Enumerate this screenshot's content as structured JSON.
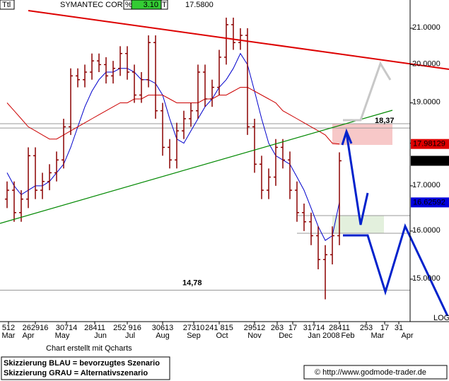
{
  "chart_data": {
    "type": "ohlc",
    "header": {
      "symbol": "Ttl",
      "name": "SYMANTEC CORP",
      "pct_label": "%",
      "pct": "3.10",
      "t_label": "T",
      "last": "17.5800"
    },
    "log_scale": true,
    "xlim": [
      0,
      290
    ],
    "ylim": [
      14.17,
      21.81
    ],
    "yticks": [
      {
        "value": 15,
        "label": "15.0000"
      },
      {
        "value": 16,
        "label": "16.0000"
      },
      {
        "value": 17,
        "label": "17.0000"
      },
      {
        "value": 18,
        "label": "18.0000"
      },
      {
        "value": 19,
        "label": "19.0000"
      },
      {
        "value": 20,
        "label": "20.0000"
      },
      {
        "value": 21,
        "label": "21.0000"
      }
    ],
    "xticks": [
      {
        "value": 6,
        "label": "512"
      },
      {
        "value": 25,
        "label": "262916"
      },
      {
        "value": 47,
        "label": "30714"
      },
      {
        "value": 67,
        "label": "28411"
      },
      {
        "value": 90,
        "label": "252 916"
      },
      {
        "value": 115,
        "label": "30613"
      },
      {
        "value": 137,
        "label": "27310"
      },
      {
        "value": 155,
        "label": "241 815"
      },
      {
        "value": 180,
        "label": "29512"
      },
      {
        "value": 196,
        "label": "263"
      },
      {
        "value": 207,
        "label": "17"
      },
      {
        "value": 222,
        "label": "31714"
      },
      {
        "value": 240,
        "label": "28411"
      },
      {
        "value": 259,
        "label": "253"
      },
      {
        "value": 272,
        "label": "17"
      },
      {
        "value": 282,
        "label": "31"
      }
    ],
    "xticks_months": [
      {
        "value": 6,
        "label": "Mar"
      },
      {
        "value": 20,
        "label": "Apr"
      },
      {
        "value": 44,
        "label": "May"
      },
      {
        "value": 71,
        "label": "Jun"
      },
      {
        "value": 92,
        "label": "Jul"
      },
      {
        "value": 115,
        "label": "Aug"
      },
      {
        "value": 137,
        "label": "Sep"
      },
      {
        "value": 157,
        "label": "Oct"
      },
      {
        "value": 180,
        "label": "Nov"
      },
      {
        "value": 202,
        "label": "Dec"
      },
      {
        "value": 229,
        "label": "Jan 2008"
      },
      {
        "value": 246,
        "label": "Feb"
      },
      {
        "value": 267,
        "label": "Mar"
      },
      {
        "value": 288,
        "label": "Apr"
      }
    ],
    "scale_label": "LOG",
    "color": "#8b0000",
    "x": [
      5,
      10,
      15,
      20,
      25,
      30,
      35,
      40,
      45,
      50,
      55,
      60,
      65,
      70,
      75,
      80,
      85,
      90,
      95,
      100,
      105,
      110,
      115,
      120,
      125,
      130,
      135,
      140,
      145,
      150,
      155,
      160,
      165,
      170,
      175,
      180,
      185,
      190,
      195,
      200,
      205,
      210,
      215,
      220,
      225,
      230,
      235,
      240
    ],
    "open": [
      16.7,
      16.9,
      16.4,
      16.7,
      17.7,
      16.9,
      17.1,
      17.3,
      17.6,
      18.4,
      19.7,
      19.6,
      19.8,
      20.1,
      20.0,
      19.7,
      19.9,
      20.3,
      19.8,
      19.2,
      19.6,
      20.6,
      18.8,
      17.9,
      17.6,
      18.3,
      18.6,
      18.8,
      19.8,
      19.1,
      19.4,
      20.2,
      21.1,
      20.6,
      20.8,
      18.4,
      17.5,
      16.9,
      17.2,
      17.9,
      17.6,
      16.9,
      16.4,
      16.2,
      15.9,
      15.4,
      15.5,
      15.9
    ],
    "high": [
      17.1,
      17.1,
      16.9,
      17.9,
      17.9,
      17.3,
      17.5,
      17.8,
      18.6,
      19.9,
      19.9,
      20.0,
      20.3,
      20.3,
      20.2,
      20.1,
      20.5,
      20.5,
      20.0,
      19.8,
      20.8,
      20.8,
      19.0,
      18.1,
      18.5,
      18.8,
      19.0,
      20.0,
      20.0,
      19.6,
      20.4,
      21.3,
      21.3,
      21.0,
      21.0,
      18.6,
      17.7,
      17.4,
      18.1,
      18.1,
      17.8,
      17.1,
      16.6,
      16.4,
      16.1,
      15.7,
      16.1,
      17.78
    ],
    "low": [
      16.5,
      16.2,
      16.2,
      16.5,
      16.7,
      16.7,
      16.9,
      17.1,
      17.4,
      18.2,
      19.4,
      19.4,
      19.6,
      19.8,
      19.5,
      19.5,
      19.7,
      19.6,
      19.0,
      19.0,
      19.4,
      18.6,
      17.7,
      17.4,
      17.4,
      18.1,
      18.4,
      18.6,
      18.9,
      18.9,
      19.2,
      20.0,
      20.4,
      20.4,
      18.2,
      17.3,
      16.7,
      16.7,
      17.0,
      17.4,
      16.7,
      16.2,
      16.0,
      15.7,
      15.2,
      14.6,
      15.3,
      15.7
    ],
    "close": [
      16.9,
      16.4,
      16.7,
      17.7,
      16.9,
      17.1,
      17.3,
      17.6,
      18.4,
      19.7,
      19.6,
      19.8,
      20.1,
      20.0,
      19.7,
      19.9,
      20.3,
      19.8,
      19.2,
      19.6,
      20.6,
      18.8,
      17.9,
      17.6,
      18.3,
      18.6,
      18.8,
      19.8,
      19.1,
      19.4,
      20.2,
      21.1,
      20.6,
      20.8,
      18.4,
      17.5,
      16.9,
      17.2,
      17.9,
      17.6,
      16.9,
      16.4,
      16.2,
      15.9,
      15.4,
      15.5,
      15.9,
      17.58
    ],
    "series": [
      {
        "color": "#0000cc",
        "values": [
          17.3,
          17.0,
          16.8,
          16.9,
          17.0,
          17.0,
          17.1,
          17.3,
          17.5,
          17.9,
          18.4,
          18.9,
          19.3,
          19.6,
          19.8,
          19.8,
          19.9,
          19.9,
          19.8,
          19.6,
          19.6,
          19.5,
          19.2,
          18.6,
          18.1,
          18.0,
          18.3,
          18.6,
          18.9,
          19.1,
          19.4,
          19.6,
          19.9,
          20.3,
          20.0,
          19.3,
          18.6,
          18.0,
          17.7,
          17.6,
          17.5,
          17.2,
          16.9,
          16.5,
          16.1,
          15.8,
          15.9,
          16.63
        ]
      },
      {
        "color": "#cc0000",
        "values": [
          19.0,
          18.8,
          18.6,
          18.4,
          18.3,
          18.2,
          18.1,
          18.1,
          18.2,
          18.3,
          18.4,
          18.5,
          18.6,
          18.7,
          18.8,
          18.9,
          19.0,
          19.0,
          19.1,
          19.1,
          19.2,
          19.2,
          19.2,
          19.1,
          19.0,
          19.0,
          19.0,
          19.0,
          19.1,
          19.1,
          19.2,
          19.2,
          19.3,
          19.4,
          19.4,
          19.3,
          19.2,
          19.1,
          19.0,
          18.8,
          18.7,
          18.6,
          18.5,
          18.4,
          18.3,
          18.2,
          18.0,
          17.98
        ]
      }
    ],
    "levels": [
      {
        "value": 18.37,
        "label": "18,37"
      },
      {
        "value": 14.78,
        "label": "14,78"
      }
    ],
    "last_values": [
      {
        "value": 17.98129,
        "label": "17.98129",
        "color": "#dd0000"
      },
      {
        "value": 17.58,
        "label": "17.5800",
        "color": "#000000"
      },
      {
        "value": 16.62592,
        "label": "16.62592",
        "color": "#0000dd"
      }
    ],
    "footer": {
      "credit": "Chart erstellt mit Qcharts",
      "legend_blue": "Skizzierung BLAU = bevorzugtes Szenario",
      "legend_gray": "Skizzierung GRAU = Alternativszenario",
      "source": "© http://www.godmode-trader.de"
    }
  }
}
